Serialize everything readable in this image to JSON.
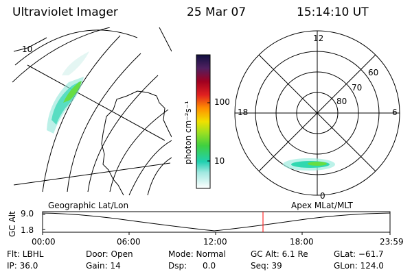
{
  "header": {
    "instrument": "Ultraviolet Imager",
    "date": "25 Mar 07",
    "time": "15:14:10 UT"
  },
  "geo_map": {
    "label_lat": "10"
  },
  "colorbar": {
    "unit": "photon cm⁻²s⁻¹",
    "tick_100": "100",
    "tick_10": "10"
  },
  "polar_plot": {
    "mlt_top": "12",
    "mlt_left": "18",
    "mlt_right": "6",
    "mlt_bottom": "0",
    "lat_60": "60",
    "lat_70": "70",
    "lat_80": "80"
  },
  "altitude_panel": {
    "left_label": "Geographic Lat/Lon",
    "right_label": "Apex MLat/MLT",
    "axis_label": "GC Alt",
    "y_top": "9.0",
    "y_bottom": "1.8",
    "x_ticks": [
      "00:00",
      "06:00",
      "12:00",
      "18:00",
      "23:59"
    ],
    "marker_color": "#ff0000"
  },
  "status": {
    "filter": "Flt: LBHL",
    "door": "Door: Open",
    "mode": "Mode: Normal",
    "gc_alt": "GC Alt: 6.1 Re",
    "glat": "GLat: −61.7",
    "ip": "IP: 36.0",
    "gain": "Gain: 14",
    "dsp": "Dsp:      0.0",
    "seq": "Seq: 39",
    "glon": "GLon: 124.0"
  }
}
